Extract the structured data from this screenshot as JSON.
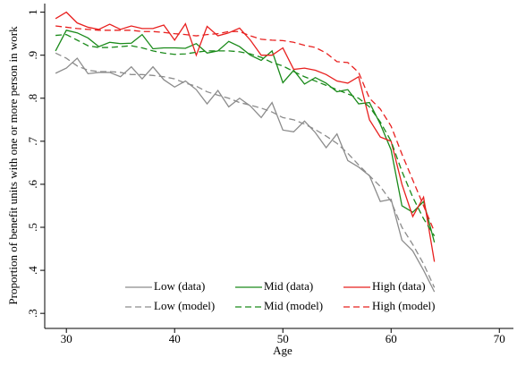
{
  "chart_data": {
    "type": "line",
    "x_label": "Age",
    "y_label": "Proportion of benefit units with one or more person in work",
    "x": [
      29,
      30,
      31,
      32,
      33,
      34,
      35,
      36,
      37,
      38,
      39,
      40,
      41,
      42,
      43,
      44,
      45,
      46,
      47,
      48,
      49,
      50,
      51,
      52,
      53,
      54,
      55,
      56,
      57,
      58,
      59,
      60,
      61,
      62,
      63,
      64
    ],
    "xlim": [
      28,
      71.3
    ],
    "xticks": [
      30,
      40,
      50,
      60,
      70
    ],
    "ylim": [
      0.265,
      1.02
    ],
    "yticks": [
      {
        "value": 0.3,
        "label": ".3"
      },
      {
        "value": 0.4,
        "label": ".4"
      },
      {
        "value": 0.5,
        "label": ".5"
      },
      {
        "value": 0.6,
        "label": ".6"
      },
      {
        "value": 0.7,
        "label": ".7"
      },
      {
        "value": 0.8,
        "label": ".8"
      },
      {
        "value": 0.9,
        "label": ".9"
      },
      1
    ],
    "grid": false,
    "legend": "bottom",
    "series": [
      {
        "name": "Low (data)",
        "color": "#8c8c8c",
        "linestyle": "solid",
        "values": [
          0.858,
          0.87,
          0.893,
          0.857,
          0.86,
          0.86,
          0.85,
          0.873,
          0.845,
          0.873,
          0.843,
          0.826,
          0.84,
          0.82,
          0.787,
          0.818,
          0.78,
          0.8,
          0.782,
          0.755,
          0.79,
          0.726,
          0.722,
          0.747,
          0.72,
          0.685,
          0.717,
          0.655,
          0.64,
          0.62,
          0.56,
          0.565,
          0.47,
          0.445,
          0.4,
          0.35
        ]
      },
      {
        "name": "Mid (data)",
        "color": "#1a8a1a",
        "linestyle": "solid",
        "values": [
          0.91,
          0.958,
          0.952,
          0.94,
          0.92,
          0.93,
          0.927,
          0.928,
          0.948,
          0.915,
          0.917,
          0.917,
          0.916,
          0.927,
          0.905,
          0.91,
          0.932,
          0.92,
          0.9,
          0.888,
          0.91,
          0.836,
          0.865,
          0.833,
          0.848,
          0.835,
          0.815,
          0.82,
          0.787,
          0.79,
          0.74,
          0.68,
          0.55,
          0.535,
          0.56,
          0.465
        ]
      },
      {
        "name": "High (data)",
        "color": "#e8201f",
        "linestyle": "solid",
        "values": [
          0.985,
          1.0,
          0.975,
          0.965,
          0.96,
          0.972,
          0.96,
          0.968,
          0.962,
          0.962,
          0.97,
          0.935,
          0.973,
          0.9,
          0.967,
          0.945,
          0.952,
          0.963,
          0.935,
          0.9,
          0.9,
          0.917,
          0.867,
          0.87,
          0.865,
          0.855,
          0.84,
          0.835,
          0.85,
          0.75,
          0.71,
          0.7,
          0.6,
          0.525,
          0.57,
          0.42
        ]
      },
      {
        "name": "Low (model)",
        "color": "#8c8c8c",
        "linestyle": "dashed",
        "values": [
          0.905,
          0.893,
          0.875,
          0.865,
          0.862,
          0.862,
          0.86,
          0.855,
          0.855,
          0.853,
          0.85,
          0.845,
          0.835,
          0.828,
          0.815,
          0.807,
          0.8,
          0.79,
          0.784,
          0.777,
          0.768,
          0.755,
          0.75,
          0.74,
          0.727,
          0.712,
          0.695,
          0.672,
          0.645,
          0.62,
          0.595,
          0.56,
          0.5,
          0.46,
          0.415,
          0.36
        ]
      },
      {
        "name": "Mid (model)",
        "color": "#1a8a1a",
        "linestyle": "dashed",
        "values": [
          0.946,
          0.948,
          0.935,
          0.922,
          0.918,
          0.918,
          0.92,
          0.922,
          0.917,
          0.91,
          0.905,
          0.902,
          0.903,
          0.907,
          0.91,
          0.91,
          0.91,
          0.908,
          0.903,
          0.895,
          0.883,
          0.875,
          0.862,
          0.85,
          0.84,
          0.83,
          0.82,
          0.81,
          0.8,
          0.78,
          0.745,
          0.7,
          0.63,
          0.57,
          0.52,
          0.48
        ]
      },
      {
        "name": "High (model)",
        "color": "#e8201f",
        "linestyle": "dashed",
        "values": [
          0.968,
          0.965,
          0.962,
          0.96,
          0.958,
          0.958,
          0.958,
          0.958,
          0.955,
          0.955,
          0.953,
          0.95,
          0.948,
          0.945,
          0.948,
          0.95,
          0.955,
          0.955,
          0.945,
          0.937,
          0.935,
          0.934,
          0.93,
          0.923,
          0.918,
          0.905,
          0.885,
          0.883,
          0.86,
          0.8,
          0.775,
          0.735,
          0.67,
          0.61,
          0.55,
          0.49
        ]
      }
    ]
  }
}
